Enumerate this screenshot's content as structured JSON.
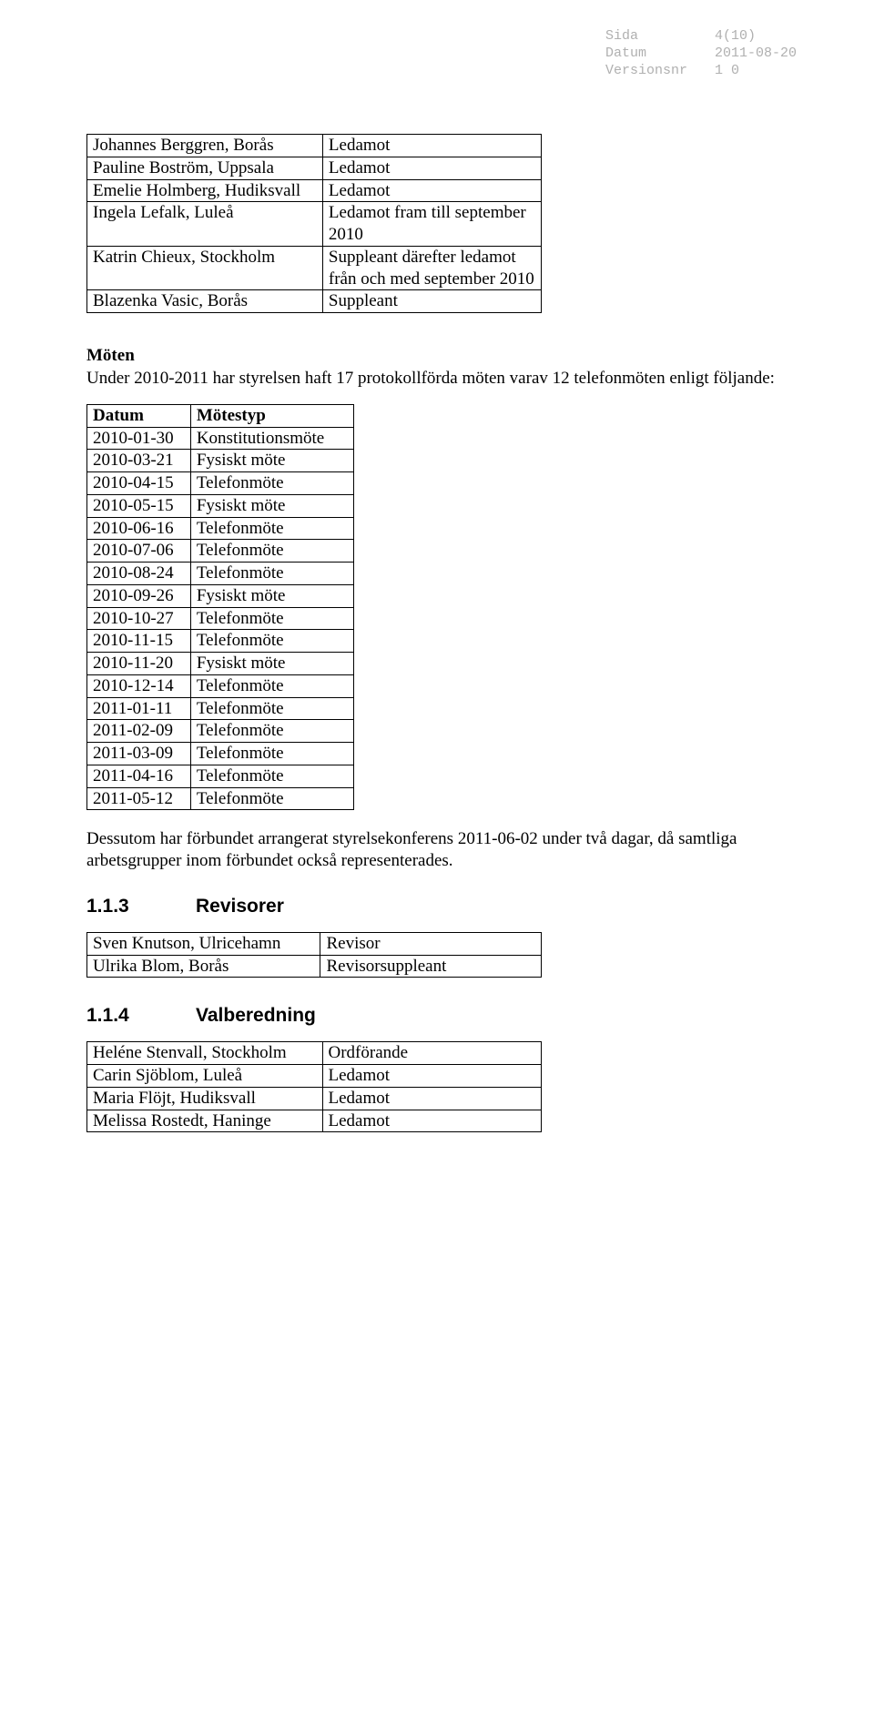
{
  "header": {
    "sida_label": "Sida",
    "sida_value": "4(10)",
    "datum_label": "Datum",
    "datum_value": "2011-08-20",
    "version_label": "Versionsnr",
    "version_value": "1 0"
  },
  "members_table": {
    "rows": [
      [
        "Johannes Berggren, Borås",
        "Ledamot"
      ],
      [
        "Pauline Boström, Uppsala",
        "Ledamot"
      ],
      [
        "Emelie Holmberg, Hudiksvall",
        "Ledamot"
      ],
      [
        "Ingela Lefalk, Luleå",
        "Ledamot fram till september 2010"
      ],
      [
        "Katrin Chieux, Stockholm",
        "Suppleant därefter ledamot från och med september 2010"
      ],
      [
        "Blazenka Vasic, Borås",
        "Suppleant"
      ]
    ]
  },
  "moten": {
    "title": "Möten",
    "intro": "Under 2010-2011 har styrelsen haft 17 protokollförda möten varav 12 telefonmöten enligt följande:"
  },
  "meetings_table": {
    "header": [
      "Datum",
      "Mötestyp"
    ],
    "rows": [
      [
        "2010-01-30",
        "Konstitutionsmöte"
      ],
      [
        "2010-03-21",
        "Fysiskt möte"
      ],
      [
        "2010-04-15",
        "Telefonmöte"
      ],
      [
        "2010-05-15",
        "Fysiskt möte"
      ],
      [
        "2010-06-16",
        "Telefonmöte"
      ],
      [
        "2010-07-06",
        "Telefonmöte"
      ],
      [
        "2010-08-24",
        "Telefonmöte"
      ],
      [
        "2010-09-26",
        "Fysiskt möte"
      ],
      [
        "2010-10-27",
        "Telefonmöte"
      ],
      [
        "2010-11-15",
        "Telefonmöte"
      ],
      [
        "2010-11-20",
        "Fysiskt möte"
      ],
      [
        "2010-12-14",
        "Telefonmöte"
      ],
      [
        "2011-01-11",
        "Telefonmöte"
      ],
      [
        "2011-02-09",
        "Telefonmöte"
      ],
      [
        "2011-03-09",
        "Telefonmöte"
      ],
      [
        "2011-04-16",
        "Telefonmöte"
      ],
      [
        "2011-05-12",
        "Telefonmöte"
      ]
    ]
  },
  "after_meetings_text": "Dessutom har förbundet arrangerat styrelsekonferens 2011-06-02 under två dagar, då samtliga arbetsgrupper inom förbundet också representerades.",
  "revisorer": {
    "num": "1.1.3",
    "title": "Revisorer",
    "rows": [
      [
        "Sven Knutson, Ulricehamn",
        "Revisor"
      ],
      [
        "Ulrika Blom, Borås",
        "Revisorsuppleant"
      ]
    ]
  },
  "valberedning": {
    "num": "1.1.4",
    "title": "Valberedning",
    "rows": [
      [
        "Heléne Stenvall, Stockholm",
        "Ordförande"
      ],
      [
        "Carin Sjöblom, Luleå",
        "Ledamot"
      ],
      [
        "Maria Flöjt, Hudiksvall",
        "Ledamot"
      ],
      [
        "Melissa Rostedt, Haninge",
        "Ledamot"
      ]
    ]
  }
}
